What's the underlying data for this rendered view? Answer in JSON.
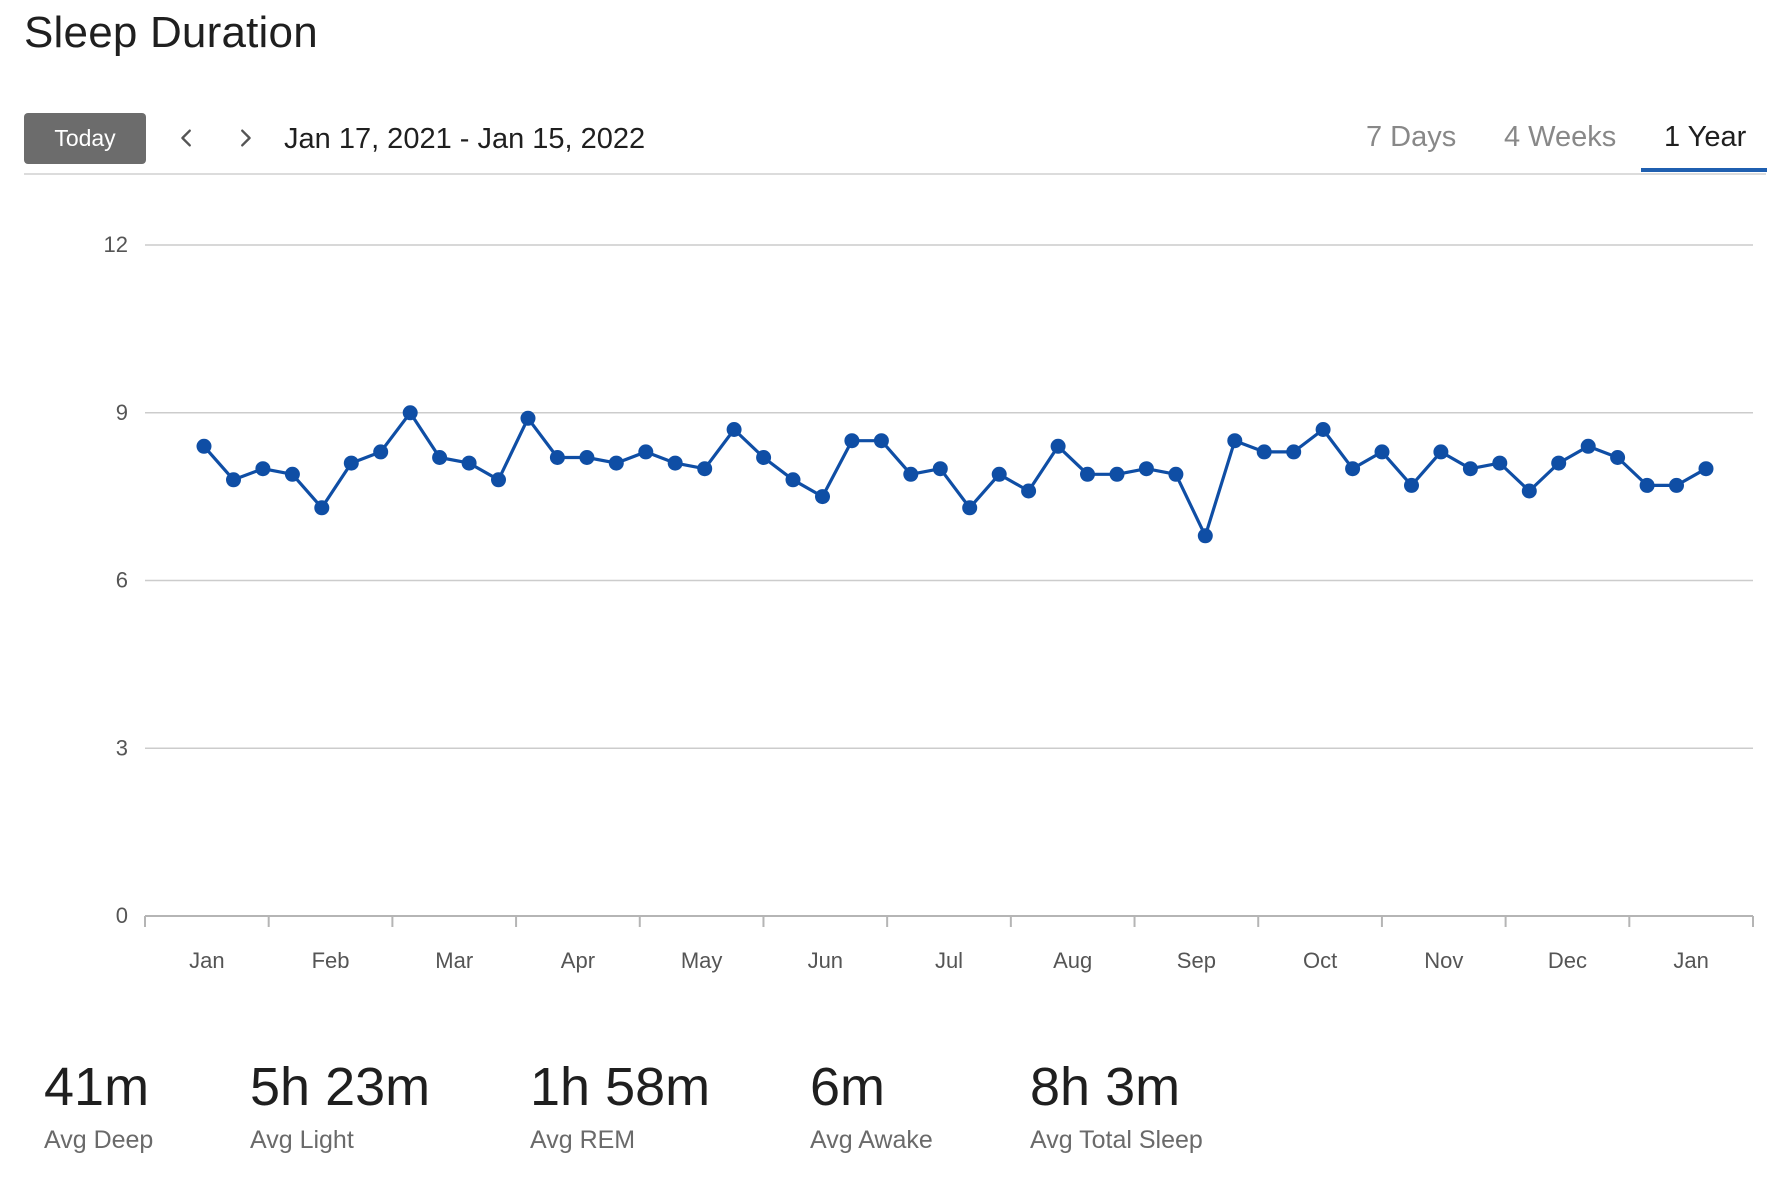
{
  "title": "Sleep Duration",
  "toolbar": {
    "today_label": "Today",
    "prev_icon": "chevron-left-icon",
    "next_icon": "chevron-right-icon",
    "date_range": "Jan 17, 2021 - Jan 15, 2022",
    "tabs": [
      {
        "label": "7 Days",
        "active": false
      },
      {
        "label": "4 Weeks",
        "active": false
      },
      {
        "label": "1 Year",
        "active": true
      }
    ]
  },
  "colors": {
    "line": "#0f4ea5",
    "accent": "#1f5fb0",
    "today_button": "#6c6c6c",
    "grid": "#cccccc"
  },
  "chart_data": {
    "type": "line",
    "title": "",
    "xlabel": "",
    "ylabel": "",
    "ylim": [
      0,
      12
    ],
    "y_ticks": [
      0,
      3,
      6,
      9,
      12
    ],
    "x_tick_labels": [
      "Jan",
      "Feb",
      "Mar",
      "Apr",
      "May",
      "Jun",
      "Jul",
      "Aug",
      "Sep",
      "Oct",
      "Nov",
      "Dec",
      "Jan"
    ],
    "grid": true,
    "legend": "none",
    "series": [
      {
        "values": [
          8.4,
          7.8,
          8.0,
          7.9,
          7.3,
          8.1,
          8.3,
          9.0,
          8.2,
          8.1,
          7.8,
          8.9,
          8.2,
          8.2,
          8.1,
          8.3,
          8.1,
          8.0,
          8.7,
          8.2,
          7.8,
          7.5,
          8.5,
          8.5,
          7.9,
          8.0,
          7.3,
          7.9,
          7.6,
          8.4,
          7.9,
          7.9,
          8.0,
          7.9,
          6.8,
          8.5,
          8.3,
          8.3,
          8.7,
          8.0,
          8.3,
          7.7,
          8.3,
          8.0,
          8.1,
          7.6,
          8.1,
          8.4,
          8.2,
          7.7,
          7.7,
          8.0
        ]
      }
    ]
  },
  "stats": [
    {
      "value": "41m",
      "label": "Avg Deep"
    },
    {
      "value": "5h 23m",
      "label": "Avg Light"
    },
    {
      "value": "1h 58m",
      "label": "Avg REM"
    },
    {
      "value": "6m",
      "label": "Avg Awake"
    },
    {
      "value": "8h 3m",
      "label": "Avg Total Sleep"
    }
  ]
}
